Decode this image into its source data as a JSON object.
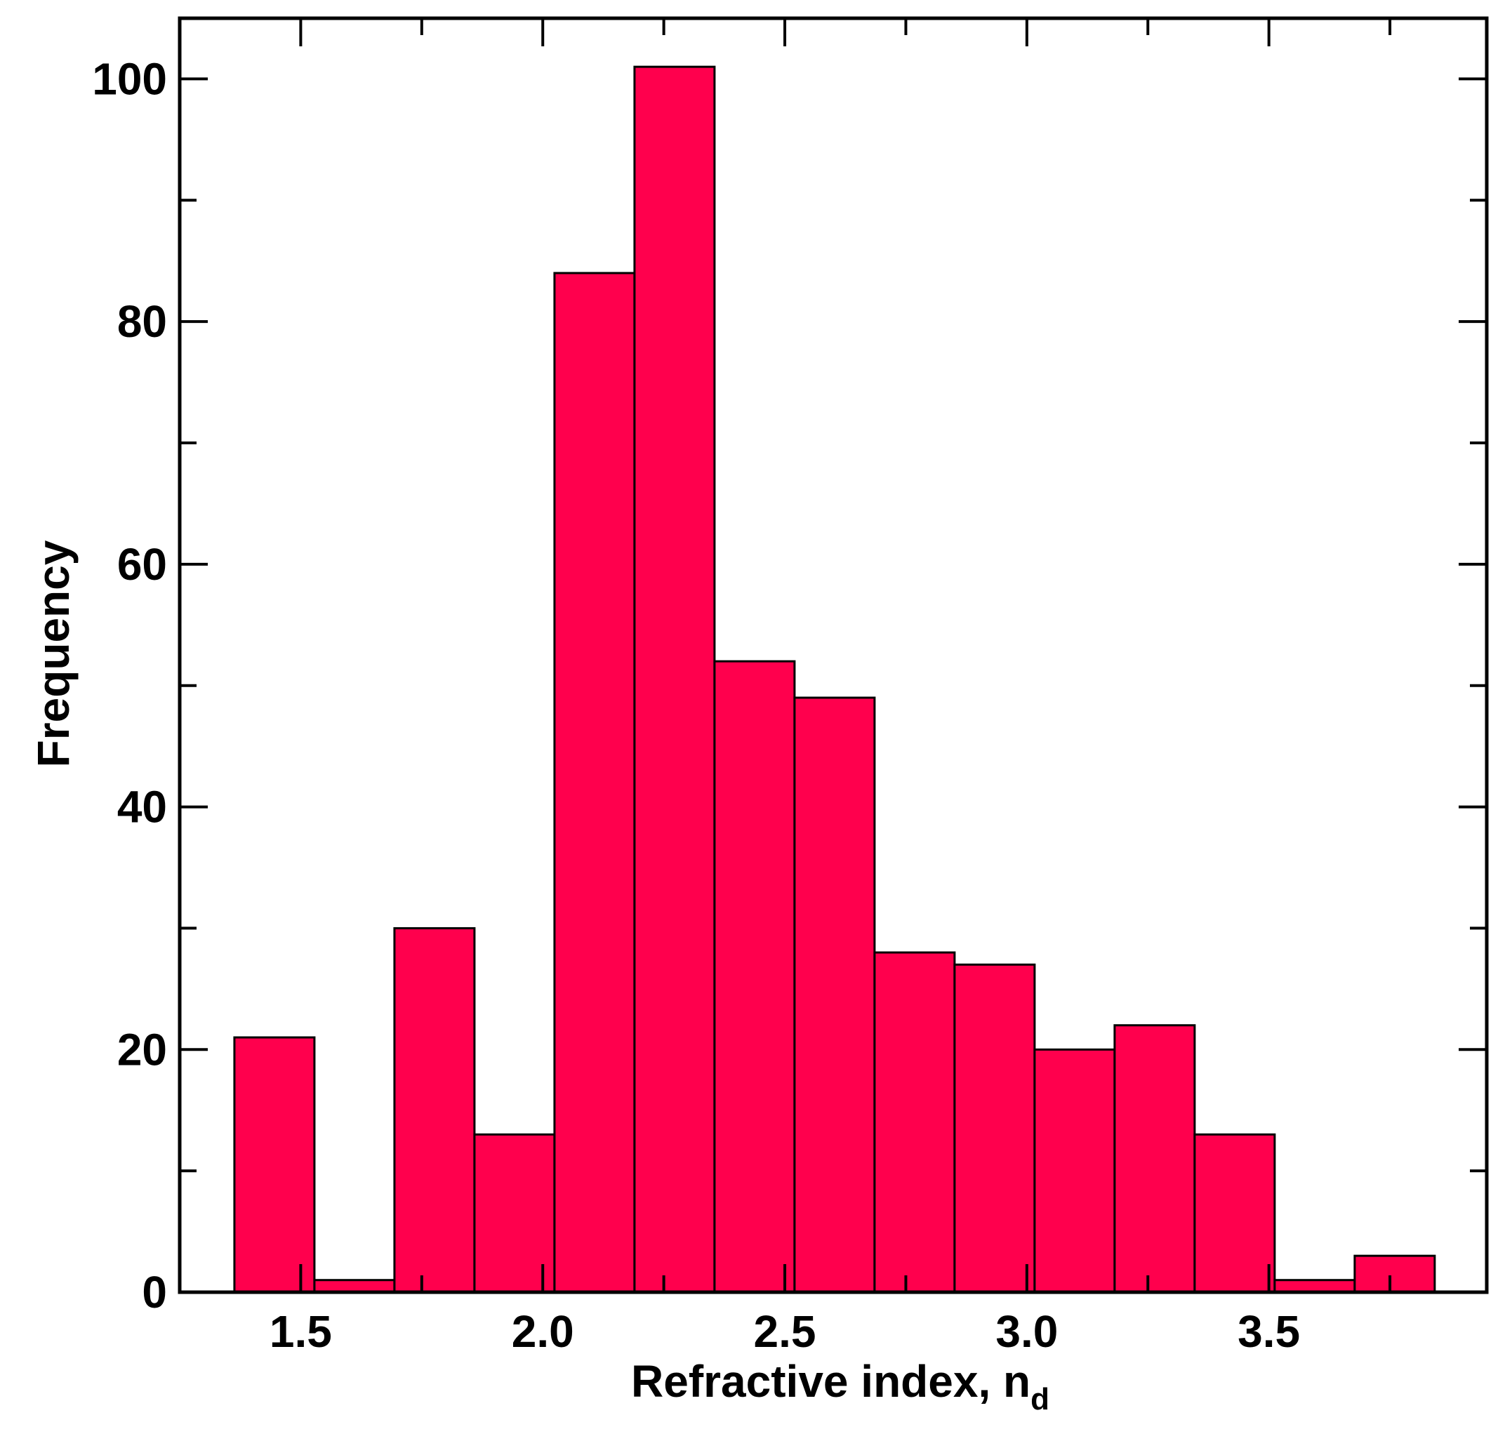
{
  "chart_data": {
    "type": "bar",
    "subtype": "histogram",
    "bin_edges": [
      1.363,
      1.5283,
      1.6936,
      1.8589,
      2.0242,
      2.1895,
      2.3548,
      2.5201,
      2.6854,
      2.8507,
      3.016,
      3.1813,
      3.3466,
      3.5119,
      3.6772,
      3.8425
    ],
    "values": [
      21,
      1,
      30,
      13,
      84,
      101,
      52,
      49,
      28,
      27,
      20,
      22,
      13,
      1,
      3
    ],
    "xlim": [
      1.25,
      3.95
    ],
    "ylim": [
      0,
      105
    ],
    "xticks": [
      1.5,
      2.0,
      2.5,
      3.0,
      3.5
    ],
    "xtick_labels": [
      "1.5",
      "2.0",
      "2.5",
      "3.0",
      "3.5"
    ],
    "yticks": [
      0,
      20,
      40,
      60,
      80,
      100
    ],
    "ytick_labels": [
      "0",
      "20",
      "40",
      "60",
      "80",
      "100"
    ],
    "y_minor_ticks": [
      10,
      30,
      50,
      70,
      90
    ],
    "xlabel": "Refractive index, n",
    "xlabel_subscript": "d",
    "ylabel": "Frequency",
    "title": "",
    "grid": false,
    "legend": "none",
    "bar_color": "#ff004d",
    "edge_color": "#000000"
  }
}
